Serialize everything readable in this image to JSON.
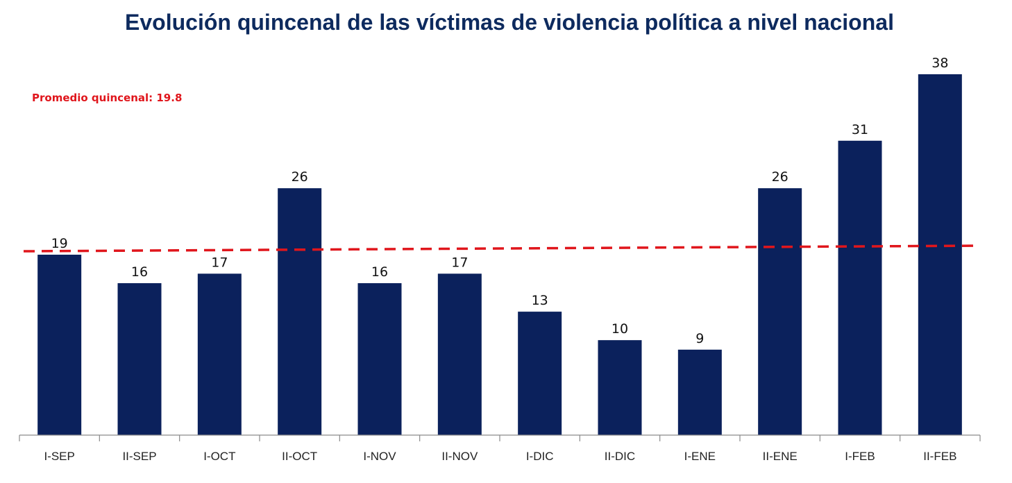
{
  "chart_data": {
    "type": "bar",
    "title": "Evolución quincenal de las víctimas de violencia política a nivel nacional",
    "xlabel": "",
    "ylabel": "",
    "categories": [
      "I-SEP",
      "II-SEP",
      "I-OCT",
      "II-OCT",
      "I-NOV",
      "II-NOV",
      "I-DIC",
      "II-DIC",
      "I-ENE",
      "II-ENE",
      "I-FEB",
      "II-FEB"
    ],
    "values": [
      19,
      16,
      17,
      26,
      16,
      17,
      13,
      10,
      9,
      26,
      31,
      38
    ],
    "ylim": [
      0,
      38
    ],
    "grid": false,
    "legend": "none",
    "bar_color": "#0b215c",
    "reference_line": {
      "label": "Promedio quincenal: 19.8",
      "value": 19.8,
      "style": "dashed",
      "color": "#e0161c"
    }
  }
}
